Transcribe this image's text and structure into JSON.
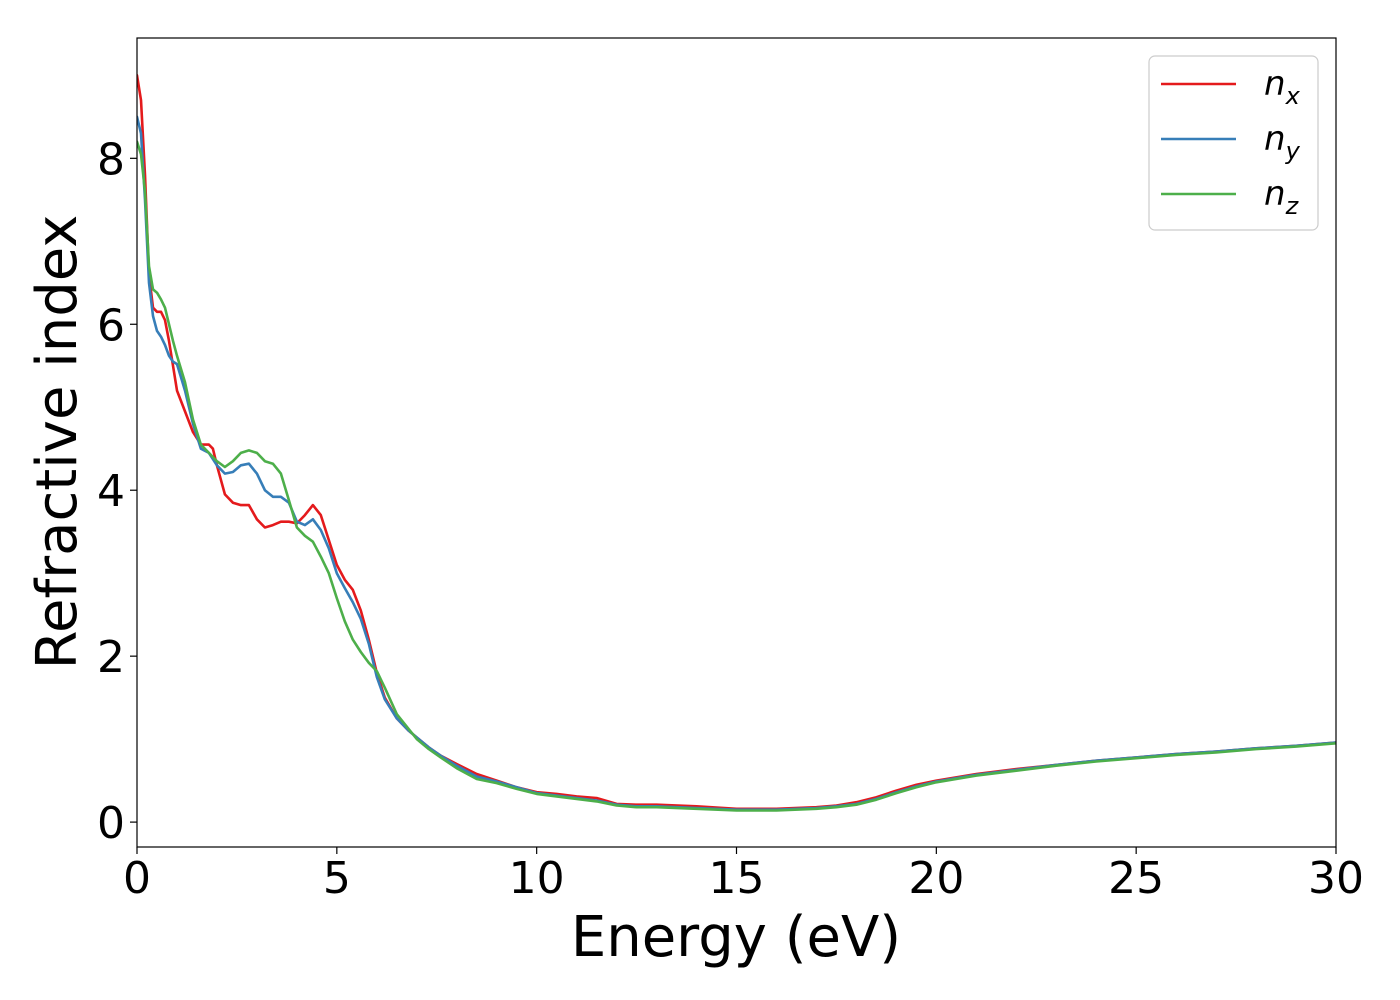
{
  "chart_data": {
    "type": "line",
    "title": "",
    "xlabel": "Energy (eV)",
    "ylabel": "Refractive index",
    "xlim": [
      0,
      30
    ],
    "ylim": [
      -0.3,
      9.45
    ],
    "xticks": [
      0,
      5,
      10,
      15,
      20,
      25,
      30
    ],
    "yticks": [
      0,
      2,
      4,
      6,
      8
    ],
    "xtick_labels": [
      "0",
      "5",
      "10",
      "15",
      "20",
      "25",
      "30"
    ],
    "ytick_labels": [
      "0",
      "2",
      "4",
      "6",
      "8"
    ],
    "grid": false,
    "legend_position": "top-right",
    "series": [
      {
        "name": "n_x",
        "label_main": "n",
        "label_sub": "x",
        "color": "#e41a1c",
        "points": [
          [
            0,
            9.0
          ],
          [
            0.1,
            8.7
          ],
          [
            0.2,
            7.8
          ],
          [
            0.3,
            6.6
          ],
          [
            0.4,
            6.2
          ],
          [
            0.5,
            6.15
          ],
          [
            0.6,
            6.15
          ],
          [
            0.7,
            6.05
          ],
          [
            0.8,
            5.8
          ],
          [
            0.9,
            5.5
          ],
          [
            1.0,
            5.2
          ],
          [
            1.2,
            4.95
          ],
          [
            1.4,
            4.7
          ],
          [
            1.6,
            4.55
          ],
          [
            1.8,
            4.55
          ],
          [
            1.9,
            4.5
          ],
          [
            2.0,
            4.3
          ],
          [
            2.2,
            3.95
          ],
          [
            2.4,
            3.85
          ],
          [
            2.6,
            3.82
          ],
          [
            2.8,
            3.82
          ],
          [
            3.0,
            3.65
          ],
          [
            3.2,
            3.55
          ],
          [
            3.4,
            3.58
          ],
          [
            3.6,
            3.62
          ],
          [
            3.8,
            3.62
          ],
          [
            4.0,
            3.6
          ],
          [
            4.2,
            3.7
          ],
          [
            4.4,
            3.82
          ],
          [
            4.6,
            3.7
          ],
          [
            4.8,
            3.4
          ],
          [
            5.0,
            3.1
          ],
          [
            5.2,
            2.92
          ],
          [
            5.4,
            2.8
          ],
          [
            5.6,
            2.55
          ],
          [
            5.8,
            2.2
          ],
          [
            6.0,
            1.8
          ],
          [
            6.2,
            1.5
          ],
          [
            6.5,
            1.25
          ],
          [
            6.8,
            1.1
          ],
          [
            7.0,
            1.02
          ],
          [
            7.3,
            0.9
          ],
          [
            7.6,
            0.8
          ],
          [
            8.0,
            0.7
          ],
          [
            8.5,
            0.58
          ],
          [
            9.0,
            0.5
          ],
          [
            9.5,
            0.42
          ],
          [
            10,
            0.36
          ],
          [
            10.5,
            0.34
          ],
          [
            11,
            0.31
          ],
          [
            11.5,
            0.29
          ],
          [
            12,
            0.22
          ],
          [
            12.5,
            0.21
          ],
          [
            13,
            0.21
          ],
          [
            14,
            0.19
          ],
          [
            15,
            0.16
          ],
          [
            16,
            0.16
          ],
          [
            17,
            0.18
          ],
          [
            17.5,
            0.2
          ],
          [
            18,
            0.24
          ],
          [
            18.5,
            0.3
          ],
          [
            19,
            0.38
          ],
          [
            19.5,
            0.45
          ],
          [
            20,
            0.5
          ],
          [
            21,
            0.58
          ],
          [
            22,
            0.64
          ],
          [
            23,
            0.69
          ],
          [
            24,
            0.74
          ],
          [
            25,
            0.78
          ],
          [
            26,
            0.82
          ],
          [
            27,
            0.85
          ],
          [
            28,
            0.89
          ],
          [
            29,
            0.92
          ],
          [
            30,
            0.96
          ]
        ]
      },
      {
        "name": "n_y",
        "label_main": "n",
        "label_sub": "y",
        "color": "#377eb8",
        "points": [
          [
            0,
            8.5
          ],
          [
            0.1,
            8.3
          ],
          [
            0.2,
            7.5
          ],
          [
            0.3,
            6.5
          ],
          [
            0.4,
            6.1
          ],
          [
            0.5,
            5.92
          ],
          [
            0.6,
            5.85
          ],
          [
            0.7,
            5.75
          ],
          [
            0.8,
            5.62
          ],
          [
            0.9,
            5.55
          ],
          [
            1.0,
            5.52
          ],
          [
            1.2,
            5.2
          ],
          [
            1.4,
            4.8
          ],
          [
            1.6,
            4.5
          ],
          [
            1.8,
            4.45
          ],
          [
            2.0,
            4.3
          ],
          [
            2.2,
            4.2
          ],
          [
            2.4,
            4.22
          ],
          [
            2.6,
            4.3
          ],
          [
            2.8,
            4.32
          ],
          [
            3.0,
            4.2
          ],
          [
            3.2,
            4.0
          ],
          [
            3.4,
            3.92
          ],
          [
            3.6,
            3.92
          ],
          [
            3.8,
            3.85
          ],
          [
            4.0,
            3.62
          ],
          [
            4.2,
            3.58
          ],
          [
            4.4,
            3.65
          ],
          [
            4.6,
            3.52
          ],
          [
            4.8,
            3.3
          ],
          [
            5.0,
            3.0
          ],
          [
            5.2,
            2.82
          ],
          [
            5.4,
            2.65
          ],
          [
            5.6,
            2.45
          ],
          [
            5.8,
            2.15
          ],
          [
            6.0,
            1.75
          ],
          [
            6.2,
            1.48
          ],
          [
            6.5,
            1.25
          ],
          [
            6.8,
            1.1
          ],
          [
            7.0,
            1.02
          ],
          [
            7.3,
            0.9
          ],
          [
            7.6,
            0.8
          ],
          [
            8.0,
            0.68
          ],
          [
            8.5,
            0.55
          ],
          [
            9.0,
            0.49
          ],
          [
            9.5,
            0.42
          ],
          [
            10,
            0.35
          ],
          [
            10.5,
            0.32
          ],
          [
            11,
            0.29
          ],
          [
            11.5,
            0.26
          ],
          [
            12,
            0.21
          ],
          [
            12.5,
            0.19
          ],
          [
            13,
            0.19
          ],
          [
            14,
            0.17
          ],
          [
            15,
            0.15
          ],
          [
            16,
            0.15
          ],
          [
            17,
            0.17
          ],
          [
            17.5,
            0.19
          ],
          [
            18,
            0.22
          ],
          [
            18.5,
            0.28
          ],
          [
            19,
            0.36
          ],
          [
            19.5,
            0.43
          ],
          [
            20,
            0.49
          ],
          [
            21,
            0.57
          ],
          [
            22,
            0.63
          ],
          [
            23,
            0.69
          ],
          [
            24,
            0.74
          ],
          [
            25,
            0.78
          ],
          [
            26,
            0.82
          ],
          [
            27,
            0.85
          ],
          [
            28,
            0.89
          ],
          [
            29,
            0.92
          ],
          [
            30,
            0.96
          ]
        ]
      },
      {
        "name": "n_z",
        "label_main": "n",
        "label_sub": "z",
        "color": "#4daf4a",
        "points": [
          [
            0,
            8.2
          ],
          [
            0.1,
            8.05
          ],
          [
            0.2,
            7.6
          ],
          [
            0.3,
            6.7
          ],
          [
            0.4,
            6.42
          ],
          [
            0.5,
            6.38
          ],
          [
            0.6,
            6.3
          ],
          [
            0.7,
            6.2
          ],
          [
            0.8,
            6.0
          ],
          [
            0.9,
            5.8
          ],
          [
            1.0,
            5.62
          ],
          [
            1.2,
            5.3
          ],
          [
            1.4,
            4.85
          ],
          [
            1.6,
            4.55
          ],
          [
            1.8,
            4.45
          ],
          [
            2.0,
            4.35
          ],
          [
            2.2,
            4.28
          ],
          [
            2.4,
            4.35
          ],
          [
            2.6,
            4.45
          ],
          [
            2.8,
            4.48
          ],
          [
            3.0,
            4.45
          ],
          [
            3.2,
            4.35
          ],
          [
            3.4,
            4.32
          ],
          [
            3.6,
            4.2
          ],
          [
            3.8,
            3.88
          ],
          [
            4.0,
            3.55
          ],
          [
            4.2,
            3.45
          ],
          [
            4.4,
            3.38
          ],
          [
            4.6,
            3.2
          ],
          [
            4.8,
            3.0
          ],
          [
            5.0,
            2.7
          ],
          [
            5.2,
            2.42
          ],
          [
            5.4,
            2.2
          ],
          [
            5.6,
            2.05
          ],
          [
            5.8,
            1.92
          ],
          [
            6.0,
            1.82
          ],
          [
            6.2,
            1.62
          ],
          [
            6.5,
            1.3
          ],
          [
            6.8,
            1.12
          ],
          [
            7.0,
            1.0
          ],
          [
            7.3,
            0.88
          ],
          [
            7.6,
            0.78
          ],
          [
            8.0,
            0.65
          ],
          [
            8.5,
            0.52
          ],
          [
            9.0,
            0.47
          ],
          [
            9.5,
            0.4
          ],
          [
            10,
            0.34
          ],
          [
            10.5,
            0.31
          ],
          [
            11,
            0.28
          ],
          [
            11.5,
            0.25
          ],
          [
            12,
            0.2
          ],
          [
            12.5,
            0.18
          ],
          [
            13,
            0.18
          ],
          [
            14,
            0.16
          ],
          [
            15,
            0.14
          ],
          [
            16,
            0.14
          ],
          [
            17,
            0.16
          ],
          [
            17.5,
            0.18
          ],
          [
            18,
            0.21
          ],
          [
            18.5,
            0.27
          ],
          [
            19,
            0.35
          ],
          [
            19.5,
            0.42
          ],
          [
            20,
            0.48
          ],
          [
            21,
            0.56
          ],
          [
            22,
            0.62
          ],
          [
            23,
            0.68
          ],
          [
            24,
            0.73
          ],
          [
            25,
            0.77
          ],
          [
            26,
            0.81
          ],
          [
            27,
            0.84
          ],
          [
            28,
            0.88
          ],
          [
            29,
            0.91
          ],
          [
            30,
            0.95
          ]
        ]
      }
    ]
  }
}
